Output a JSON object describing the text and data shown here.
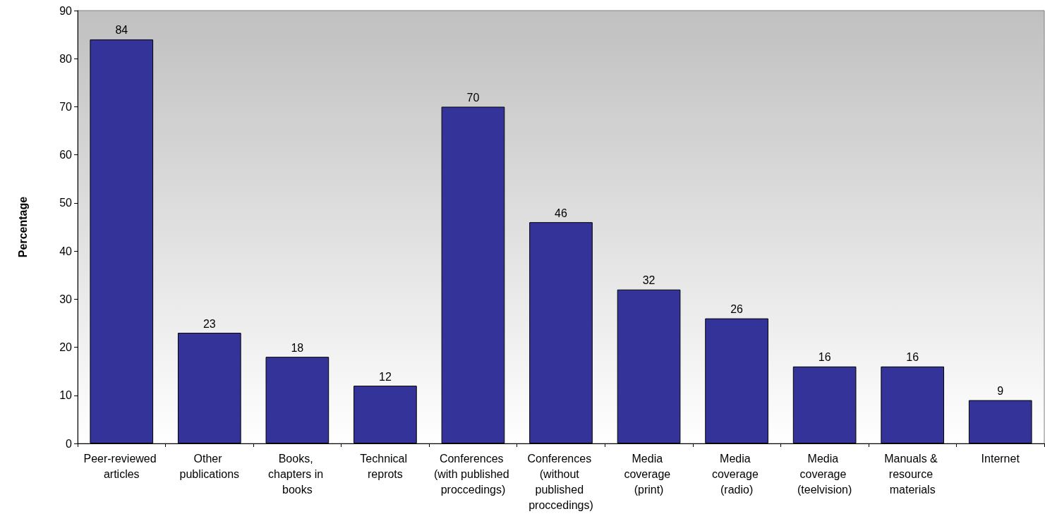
{
  "chart_data": {
    "type": "bar",
    "ylabel": "Percentage",
    "categories": [
      "Peer-reviewed articles",
      "Other publications",
      "Books, chapters in books",
      "Technical reprots",
      "Conferences (with published proccedings)",
      "Conferences (without published proccedings)",
      "Media coverage (print)",
      "Media coverage (radio)",
      "Media coverage (teelvision)",
      "Manuals & resource materials",
      "Internet"
    ],
    "values": [
      84,
      23,
      18,
      12,
      70,
      46,
      32,
      26,
      16,
      16,
      9
    ],
    "color": "#333399",
    "ylim": [
      0,
      90
    ],
    "yticks": [
      0,
      10,
      20,
      30,
      40,
      50,
      60,
      70,
      80,
      90
    ],
    "grid": false,
    "data_labels": true
  }
}
